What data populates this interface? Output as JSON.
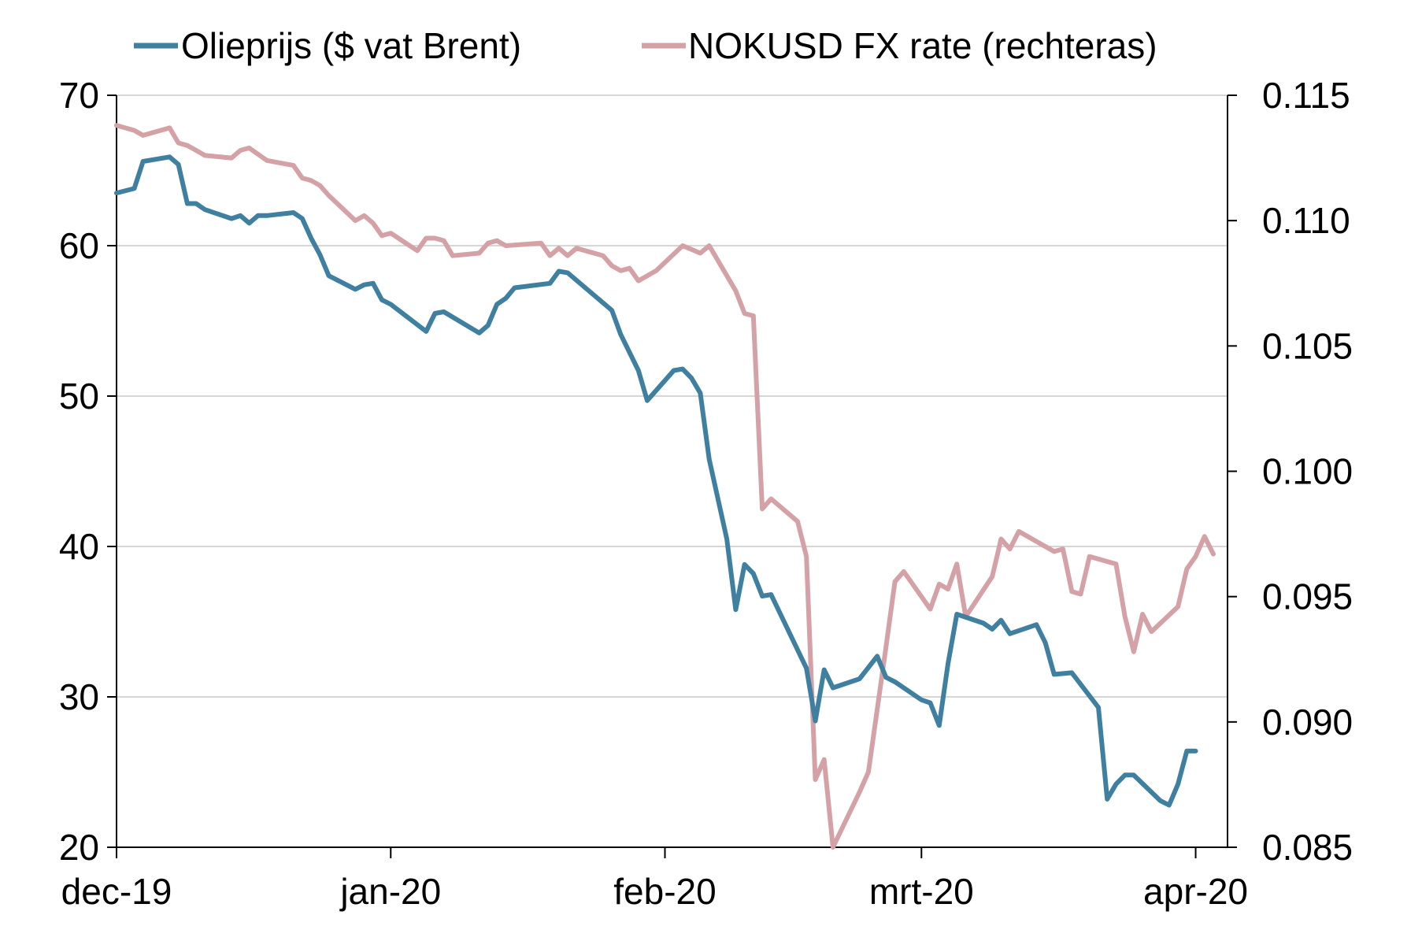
{
  "chart_data": {
    "type": "line",
    "title": "",
    "xlabel": "",
    "ylabel": "",
    "x_tick_labels": [
      "dec-19",
      "jan-20",
      "feb-20",
      "mrt-20",
      "apr-20"
    ],
    "x_tick_days": [
      0,
      31,
      62,
      91,
      122
    ],
    "y_left": {
      "ticks": [
        "20",
        "30",
        "40",
        "50",
        "60",
        "70"
      ],
      "range": [
        20,
        70
      ]
    },
    "y_right": {
      "ticks": [
        "0.085",
        "0.090",
        "0.095",
        "0.100",
        "0.105",
        "0.110",
        "0.115"
      ],
      "range": [
        0.085,
        0.115
      ]
    },
    "grid": true,
    "legend_position": "top",
    "series": [
      {
        "name": "Olieprijs ($ vat Brent)",
        "axis": "left",
        "color": "#3f7fa0",
        "points": [
          [
            0,
            63.5
          ],
          [
            2,
            63.8
          ],
          [
            3,
            65.6
          ],
          [
            6,
            65.9
          ],
          [
            7,
            65.4
          ],
          [
            8,
            62.8
          ],
          [
            9,
            62.8
          ],
          [
            10,
            62.4
          ],
          [
            13,
            61.8
          ],
          [
            14,
            62.0
          ],
          [
            15,
            61.5
          ],
          [
            16,
            62.0
          ],
          [
            17,
            62.0
          ],
          [
            20,
            62.2
          ],
          [
            21,
            61.8
          ],
          [
            22,
            60.5
          ],
          [
            23,
            59.4
          ],
          [
            24,
            58.0
          ],
          [
            27,
            57.1
          ],
          [
            28,
            57.4
          ],
          [
            29,
            57.5
          ],
          [
            30,
            56.4
          ],
          [
            31,
            56.1
          ],
          [
            35,
            54.3
          ],
          [
            36,
            55.5
          ],
          [
            37,
            55.6
          ],
          [
            41,
            54.2
          ],
          [
            42,
            54.7
          ],
          [
            43,
            56.1
          ],
          [
            44,
            56.5
          ],
          [
            45,
            57.2
          ],
          [
            49,
            57.5
          ],
          [
            50,
            58.3
          ],
          [
            51,
            58.2
          ],
          [
            56,
            55.7
          ],
          [
            57,
            54.1
          ],
          [
            59,
            51.7
          ],
          [
            60,
            49.7
          ],
          [
            63,
            51.7
          ],
          [
            64,
            51.8
          ],
          [
            65,
            51.2
          ],
          [
            66,
            50.2
          ],
          [
            67,
            45.8
          ],
          [
            69,
            40.5
          ],
          [
            70,
            35.8
          ],
          [
            71,
            38.8
          ],
          [
            72,
            38.2
          ],
          [
            73,
            36.7
          ],
          [
            74,
            36.8
          ],
          [
            78,
            31.9
          ],
          [
            79,
            28.4
          ],
          [
            80,
            31.8
          ],
          [
            81,
            30.6
          ],
          [
            84,
            31.2
          ],
          [
            86,
            32.7
          ],
          [
            87,
            31.3
          ],
          [
            88,
            31.0
          ],
          [
            91,
            29.8
          ],
          [
            92,
            29.6
          ],
          [
            93,
            28.1
          ],
          [
            94,
            32.2
          ],
          [
            95,
            35.5
          ],
          [
            98,
            34.9
          ],
          [
            99,
            34.5
          ],
          [
            100,
            35.1
          ],
          [
            101,
            34.2
          ],
          [
            104,
            34.8
          ],
          [
            105,
            33.6
          ],
          [
            106,
            31.5
          ],
          [
            108,
            31.6
          ],
          [
            111,
            29.3
          ],
          [
            112,
            23.2
          ],
          [
            113,
            24.2
          ],
          [
            114,
            24.8
          ],
          [
            115,
            24.8
          ],
          [
            118,
            23.1
          ],
          [
            119,
            22.8
          ],
          [
            120,
            24.2
          ],
          [
            121,
            26.4
          ],
          [
            122,
            26.4
          ]
        ]
      },
      {
        "name": "NOKUSD FX rate (rechteras)",
        "axis": "right",
        "color": "#d4a2a6",
        "points": [
          [
            0,
            0.1138
          ],
          [
            2,
            0.1136
          ],
          [
            3,
            0.1134
          ],
          [
            6,
            0.1137
          ],
          [
            7,
            0.1131
          ],
          [
            8,
            0.113
          ],
          [
            9,
            0.1128
          ],
          [
            10,
            0.1126
          ],
          [
            13,
            0.1125
          ],
          [
            14,
            0.1128
          ],
          [
            15,
            0.1129
          ],
          [
            17,
            0.1124
          ],
          [
            20,
            0.1122
          ],
          [
            21,
            0.1117
          ],
          [
            22,
            0.1116
          ],
          [
            23,
            0.1114
          ],
          [
            24,
            0.111
          ],
          [
            27,
            0.11
          ],
          [
            28,
            0.1102
          ],
          [
            29,
            0.1099
          ],
          [
            30,
            0.1094
          ],
          [
            31,
            0.1095
          ],
          [
            34,
            0.1088
          ],
          [
            35,
            0.1093
          ],
          [
            36,
            0.1093
          ],
          [
            37,
            0.1092
          ],
          [
            38,
            0.1086
          ],
          [
            41,
            0.1087
          ],
          [
            42,
            0.1091
          ],
          [
            43,
            0.1092
          ],
          [
            44,
            0.109
          ],
          [
            48,
            0.1091
          ],
          [
            49,
            0.1086
          ],
          [
            50,
            0.1089
          ],
          [
            51,
            0.1086
          ],
          [
            52,
            0.1089
          ],
          [
            55,
            0.1086
          ],
          [
            56,
            0.1082
          ],
          [
            57,
            0.108
          ],
          [
            58,
            0.1081
          ],
          [
            59,
            0.1076
          ],
          [
            61,
            0.108
          ],
          [
            64,
            0.109
          ],
          [
            66,
            0.1087
          ],
          [
            67,
            0.109
          ],
          [
            70,
            0.1072
          ],
          [
            71,
            0.1063
          ],
          [
            72,
            0.1062
          ],
          [
            73,
            0.0985
          ],
          [
            74,
            0.0989
          ],
          [
            77,
            0.098
          ],
          [
            78,
            0.0966
          ],
          [
            79,
            0.0877
          ],
          [
            80,
            0.0885
          ],
          [
            81,
            0.085
          ],
          [
            84,
            0.0872
          ],
          [
            85,
            0.088
          ],
          [
            87,
            0.093
          ],
          [
            88,
            0.0956
          ],
          [
            89,
            0.096
          ],
          [
            91,
            0.095
          ],
          [
            92,
            0.0945
          ],
          [
            93,
            0.0955
          ],
          [
            94,
            0.0953
          ],
          [
            95,
            0.0963
          ],
          [
            96,
            0.0942
          ],
          [
            99,
            0.0958
          ],
          [
            100,
            0.0973
          ],
          [
            101,
            0.0969
          ],
          [
            102,
            0.0976
          ],
          [
            106,
            0.0968
          ],
          [
            107,
            0.0969
          ],
          [
            108,
            0.0952
          ],
          [
            109,
            0.0951
          ],
          [
            110,
            0.0966
          ],
          [
            113,
            0.0963
          ],
          [
            114,
            0.0942
          ],
          [
            115,
            0.0928
          ],
          [
            116,
            0.0943
          ],
          [
            117,
            0.0936
          ],
          [
            120,
            0.0946
          ],
          [
            121,
            0.0961
          ],
          [
            122,
            0.0966
          ],
          [
            123,
            0.0974
          ],
          [
            124,
            0.0967
          ]
        ]
      }
    ]
  }
}
